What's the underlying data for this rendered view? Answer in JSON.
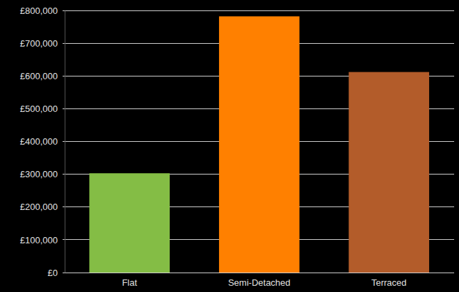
{
  "chart_data": {
    "type": "bar",
    "categories": [
      "Flat",
      "Semi-Detached",
      "Terraced"
    ],
    "values": [
      303000,
      782000,
      612000
    ],
    "colors": [
      "#84bd45",
      "#ff8000",
      "#b35c2a"
    ],
    "ylim": [
      0,
      800000
    ],
    "yticks": [
      {
        "value": 0,
        "label": "£0"
      },
      {
        "value": 100000,
        "label": "£100,000"
      },
      {
        "value": 200000,
        "label": "£200,000"
      },
      {
        "value": 300000,
        "label": "£300,000"
      },
      {
        "value": 400000,
        "label": "£400,000"
      },
      {
        "value": 500000,
        "label": "£500,000"
      },
      {
        "value": 600000,
        "label": "£600,000"
      },
      {
        "value": 700000,
        "label": "£700,000"
      },
      {
        "value": 800000,
        "label": "£800,000"
      }
    ],
    "grid": true
  }
}
